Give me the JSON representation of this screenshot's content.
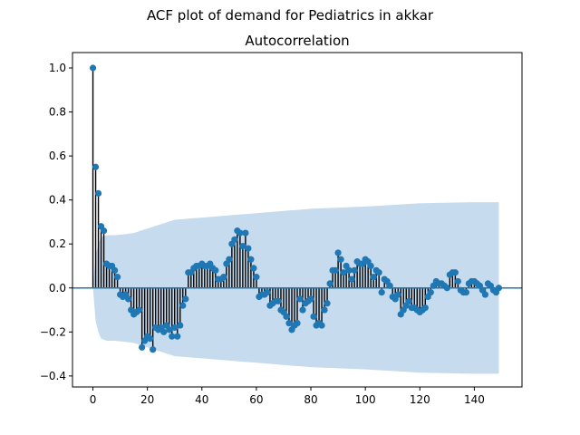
{
  "figure": {
    "suptitle": "ACF plot of demand for Pediatrics in akkar"
  },
  "chart_data": {
    "type": "stem",
    "title": "Autocorrelation",
    "xlabel": "",
    "ylabel": "",
    "xlim": [
      -7.5,
      157.5
    ],
    "ylim": [
      -0.45,
      1.07
    ],
    "xticks": [
      0,
      20,
      40,
      60,
      80,
      100,
      120,
      140
    ],
    "yticks": [
      -0.4,
      -0.2,
      0.0,
      0.2,
      0.4,
      0.6,
      0.8,
      1.0
    ],
    "ytick_labels": [
      "−0.4",
      "−0.2",
      "0.0",
      "0.2",
      "0.4",
      "0.6",
      "0.8",
      "1.0"
    ],
    "lags_start": 0,
    "values": [
      1.0,
      0.55,
      0.43,
      0.28,
      0.26,
      0.11,
      0.1,
      0.1,
      0.08,
      0.05,
      -0.03,
      -0.04,
      -0.03,
      -0.05,
      -0.1,
      -0.12,
      -0.11,
      -0.1,
      -0.27,
      -0.24,
      -0.22,
      -0.23,
      -0.28,
      -0.18,
      -0.19,
      -0.18,
      -0.2,
      -0.17,
      -0.19,
      -0.22,
      -0.18,
      -0.22,
      -0.17,
      -0.08,
      -0.05,
      0.07,
      0.07,
      0.09,
      0.1,
      0.1,
      0.11,
      0.1,
      0.1,
      0.11,
      0.09,
      0.08,
      0.04,
      0.04,
      0.05,
      0.11,
      0.13,
      0.2,
      0.22,
      0.26,
      0.25,
      0.19,
      0.25,
      0.18,
      0.13,
      0.09,
      0.05,
      -0.04,
      -0.03,
      -0.03,
      -0.02,
      -0.08,
      -0.07,
      -0.06,
      -0.06,
      -0.1,
      -0.11,
      -0.13,
      -0.16,
      -0.19,
      -0.17,
      -0.16,
      -0.05,
      -0.1,
      -0.07,
      -0.06,
      -0.05,
      -0.13,
      -0.17,
      -0.16,
      -0.17,
      -0.1,
      -0.07,
      0.02,
      0.08,
      0.08,
      0.16,
      0.13,
      0.07,
      0.1,
      0.08,
      0.04,
      0.08,
      0.12,
      0.11,
      0.11,
      0.13,
      0.12,
      0.1,
      0.05,
      0.08,
      0.07,
      -0.02,
      0.04,
      0.03,
      0.01,
      -0.04,
      -0.05,
      -0.03,
      -0.12,
      -0.1,
      -0.08,
      -0.06,
      -0.09,
      -0.09,
      -0.1,
      -0.11,
      -0.1,
      -0.09,
      -0.04,
      -0.02,
      0.01,
      0.03,
      0.02,
      0.02,
      0.01,
      0.0,
      0.06,
      0.07,
      0.07,
      0.03,
      -0.01,
      -0.02,
      -0.02,
      0.02,
      0.03,
      0.03,
      0.02,
      0.01,
      -0.01,
      -0.03,
      0.02,
      0.01,
      -0.01,
      -0.02,
      0.0
    ],
    "confidence_band": {
      "lags": [
        0,
        1,
        2,
        3,
        5,
        8,
        12,
        15,
        20,
        25,
        30,
        40,
        50,
        60,
        80,
        100,
        120,
        140,
        150
      ],
      "upper": [
        0.0,
        0.15,
        0.2,
        0.23,
        0.24,
        0.24,
        0.245,
        0.25,
        0.27,
        0.29,
        0.31,
        0.32,
        0.33,
        0.34,
        0.36,
        0.37,
        0.385,
        0.39,
        0.39
      ]
    },
    "colors": {
      "marker": "#1f77b4",
      "stem": "#000000",
      "baseline": "#1f77b4",
      "band": "#c6dbee"
    }
  }
}
